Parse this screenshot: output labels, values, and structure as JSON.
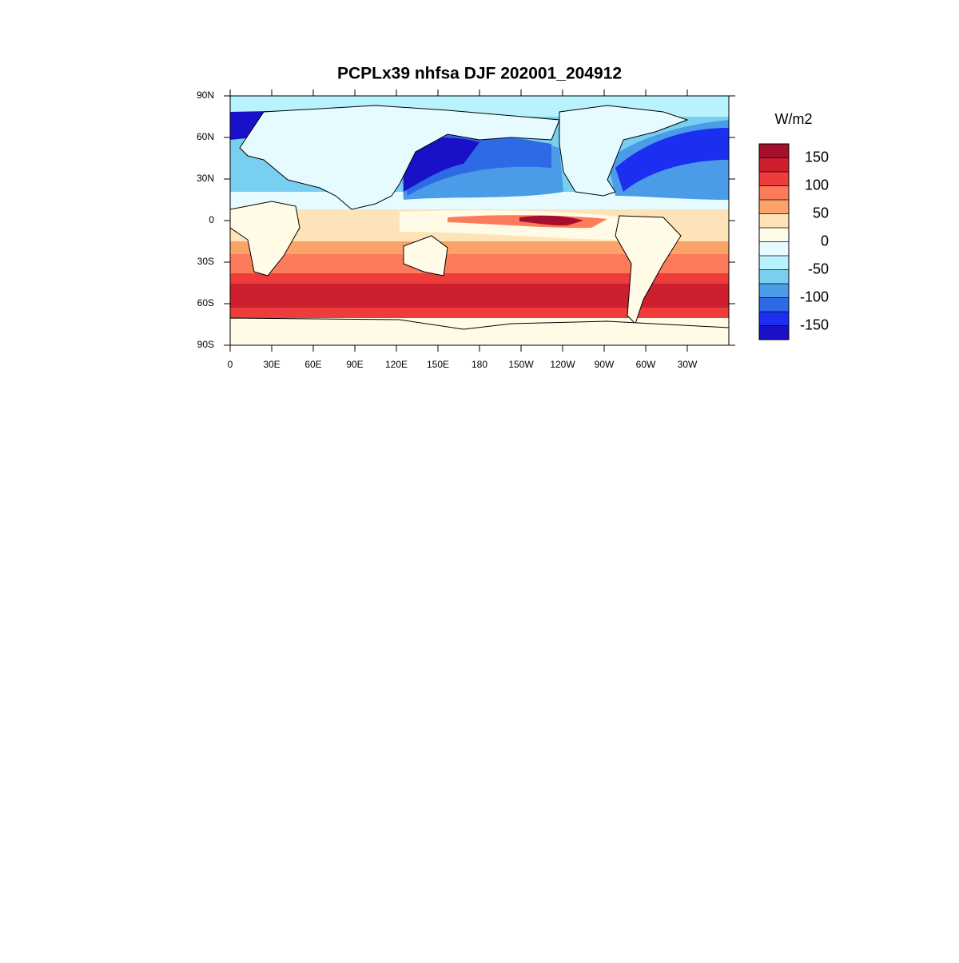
{
  "chart_data": {
    "type": "contour-map",
    "title": "PCPLx39 nhfsa DJF 202001_204912",
    "colorbar_title": "W/m2",
    "xlim": [
      0,
      360
    ],
    "ylim": [
      -90,
      90
    ],
    "xticks": [
      0,
      {
        "value": 30,
        "label": "30E"
      },
      {
        "value": 60,
        "label": "60E"
      },
      {
        "value": 90,
        "label": "90E"
      },
      {
        "value": 120,
        "label": "120E"
      },
      {
        "value": 150,
        "label": "150E"
      },
      180,
      {
        "value": 210,
        "label": "150W"
      },
      {
        "value": 240,
        "label": "120W"
      },
      {
        "value": 270,
        "label": "90W"
      },
      {
        "value": 300,
        "label": "60W"
      },
      {
        "value": 330,
        "label": "30W"
      }
    ],
    "yticks": [
      {
        "value": -90,
        "label": "90S"
      },
      {
        "value": -60,
        "label": "60S"
      },
      {
        "value": -30,
        "label": "30S"
      },
      0,
      {
        "value": 30,
        "label": "30N"
      },
      {
        "value": 60,
        "label": "60N"
      },
      {
        "value": 90,
        "label": "90N"
      }
    ],
    "levels": [
      -150,
      -125,
      -100,
      -75,
      -50,
      -25,
      0,
      25,
      50,
      75,
      100,
      125,
      150
    ],
    "colorbar_ticks": [
      -150,
      -100,
      -50,
      0,
      50,
      100,
      150
    ],
    "colors": [
      "#1a10c8",
      "#1c2ff0",
      "#2e6ae6",
      "#4a9be8",
      "#79cfef",
      "#b8f2fc",
      "#e6fbff",
      "#fffbe6",
      "#fee3b8",
      "#fca36a",
      "#fb7b5b",
      "#ee3b3b",
      "#ce1f2e",
      "#a50f2d"
    ]
  }
}
